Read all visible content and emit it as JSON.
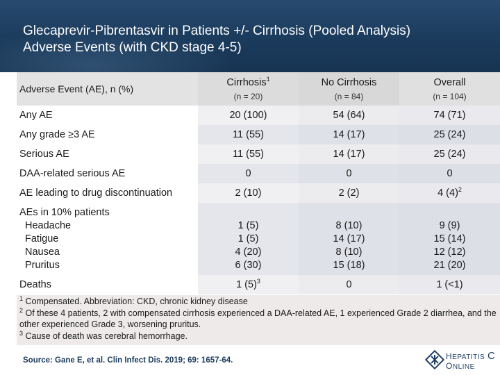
{
  "slide": {
    "title_line1": "Glecaprevir-Pibrentasvir in Patients +/- Cirrhosis (Pooled Analysis)",
    "title_line2": "Adverse Events (with CKD stage 4-5)"
  },
  "table": {
    "header": {
      "label": "Adverse Event (AE), n (%)",
      "columns": [
        {
          "name": "Cirrhosis",
          "sup": "1",
          "n": "(n = 20)"
        },
        {
          "name": "No Cirrhosis",
          "sup": "",
          "n": "(n = 84)"
        },
        {
          "name": "Overall",
          "sup": "",
          "n": "(n = 104)"
        }
      ]
    },
    "rows": [
      {
        "label": "Any AE",
        "values": [
          "20 (100)",
          "54 (64)",
          "74 (71)"
        ]
      },
      {
        "label": "Any grade ≥3 AE",
        "values": [
          "11 (55)",
          "14 (17)",
          "25 (24)"
        ]
      },
      {
        "label": "Serious AE",
        "values": [
          "11 (55)",
          "14 (17)",
          "25 (24)"
        ]
      },
      {
        "label": "DAA-related serious AE",
        "values": [
          "0",
          "0",
          "0"
        ]
      },
      {
        "label": "AE leading to drug discontinuation",
        "values": [
          "2 (10)",
          "2 (2)",
          "4 (4)"
        ],
        "sups": [
          "",
          "",
          "2"
        ]
      }
    ],
    "group": {
      "label": "AEs in 10% patients",
      "items": [
        {
          "label": "Headache",
          "values": [
            "1 (5)",
            "8 (10)",
            "9 (9)"
          ]
        },
        {
          "label": "Fatigue",
          "values": [
            "1 (5)",
            "14 (17)",
            "15 (14)"
          ]
        },
        {
          "label": "Nausea",
          "values": [
            "4 (20)",
            "8 (10)",
            "12 (12)"
          ]
        },
        {
          "label": "Pruritus",
          "values": [
            "6 (30)",
            "15 (18)",
            "21 (20)"
          ]
        }
      ]
    },
    "deaths": {
      "label": "Deaths",
      "values": [
        "1 (5)",
        "0",
        "1 (<1)"
      ],
      "sups": [
        "3",
        "",
        ""
      ]
    }
  },
  "footnotes": {
    "f1_mark": "1",
    "f1": "Compensated. Abbreviation: CKD, chronic kidney disease",
    "f2_mark": "2",
    "f2": "Of these 4 patients, 2 with compensated cirrhosis experienced a DAA-related AE, 1 experienced Grade 2 diarrhea, and the other experienced Grade 3, worsening pruritus.",
    "f3_mark": "3",
    "f3": "Cause of death was cerebral hemorrhage."
  },
  "source": "Source: Gane E, et al. Clin Infect Dis. 2019; 69: 1657-64.",
  "logo": {
    "line1_initial": "H",
    "line1_rest": "EPATITIS",
    "line1_letter": "C",
    "line2_initial": "O",
    "line2_rest": "NLINE",
    "icon": "hepatitis-c-online-logo-icon"
  },
  "colors": {
    "header_bg": "#1b3b5c",
    "header_text": "#ffffff",
    "footnote_bg": "#eeeaea",
    "source_text": "#1a3a5c"
  }
}
